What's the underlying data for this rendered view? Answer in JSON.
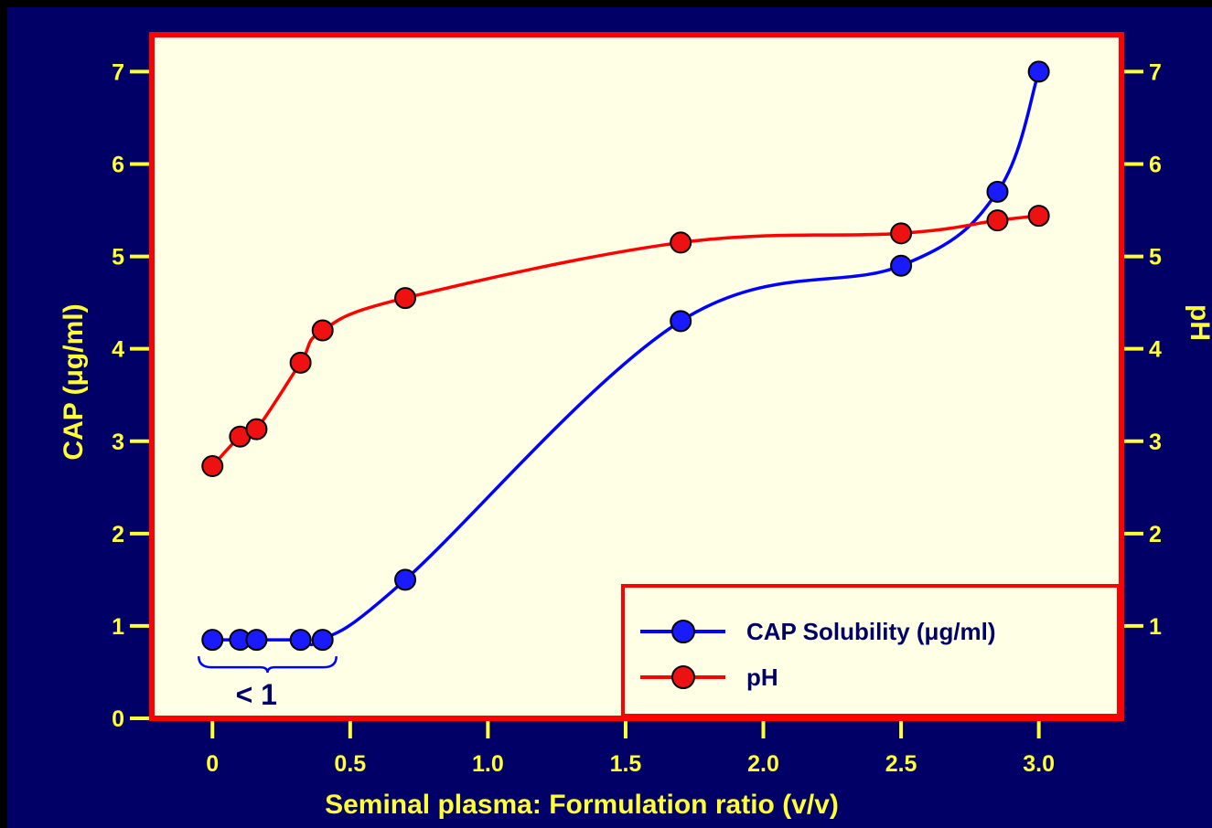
{
  "chart_data": {
    "type": "line",
    "xlabel": "Seminal plasma: Formulation ratio (v/v)",
    "ylabel_left": "CAP (μg/ml)",
    "ylabel_right": "pH",
    "xlim": [
      -0.22,
      3.3
    ],
    "ylim_left": [
      0,
      7.4
    ],
    "ylim_right": [
      0,
      7.4
    ],
    "x_ticks": [
      {
        "value": 0,
        "label": "0"
      },
      {
        "value": 0.5,
        "label": "0.5"
      },
      {
        "value": 1.0,
        "label": "1.0"
      },
      {
        "value": 1.5,
        "label": "1.5"
      },
      {
        "value": 2.0,
        "label": "2.0"
      },
      {
        "value": 2.5,
        "label": "2.5"
      },
      {
        "value": 3.0,
        "label": "3.0"
      }
    ],
    "y_ticks_left": [
      {
        "value": 0,
        "label": "0"
      },
      {
        "value": 1,
        "label": "1"
      },
      {
        "value": 2,
        "label": "2"
      },
      {
        "value": 3,
        "label": "3"
      },
      {
        "value": 4,
        "label": "4"
      },
      {
        "value": 5,
        "label": "5"
      },
      {
        "value": 6,
        "label": "6"
      },
      {
        "value": 7,
        "label": "7"
      }
    ],
    "y_ticks_right": [
      {
        "value": 1,
        "label": "1"
      },
      {
        "value": 2,
        "label": "2"
      },
      {
        "value": 3,
        "label": "3"
      },
      {
        "value": 4,
        "label": "4"
      },
      {
        "value": 5,
        "label": "5"
      },
      {
        "value": 6,
        "label": "6"
      },
      {
        "value": 7,
        "label": "7"
      }
    ],
    "series": [
      {
        "name": "CAP Solubility (μg/ml)",
        "axis": "left",
        "color": "#0000FF",
        "marker_color": "#1A1AFF",
        "x": [
          0,
          0.1,
          0.16,
          0.32,
          0.4,
          0.7,
          1.7,
          2.5,
          2.85,
          3.0
        ],
        "y": [
          0.85,
          0.85,
          0.85,
          0.85,
          0.85,
          1.5,
          4.3,
          4.9,
          5.7,
          7.0
        ]
      },
      {
        "name": "pH",
        "axis": "right",
        "color": "#FF0000",
        "marker_color": "#EE1111",
        "x": [
          0,
          0.1,
          0.16,
          0.32,
          0.4,
          0.7,
          1.7,
          2.5,
          2.85,
          3.0
        ],
        "y": [
          2.73,
          3.05,
          3.13,
          3.85,
          4.2,
          4.55,
          5.15,
          5.25,
          5.39,
          5.44
        ]
      }
    ],
    "annotation": {
      "text": "< 1",
      "x_from": 0,
      "x_to": 0.4
    },
    "legend_position": "bottom-right",
    "grid": false,
    "colors": {
      "background": "#000066",
      "plot_area": "#FFFFE6",
      "frame": "#FF0000",
      "axis_text": "#FFFF33",
      "legend_text": "#000066"
    }
  }
}
